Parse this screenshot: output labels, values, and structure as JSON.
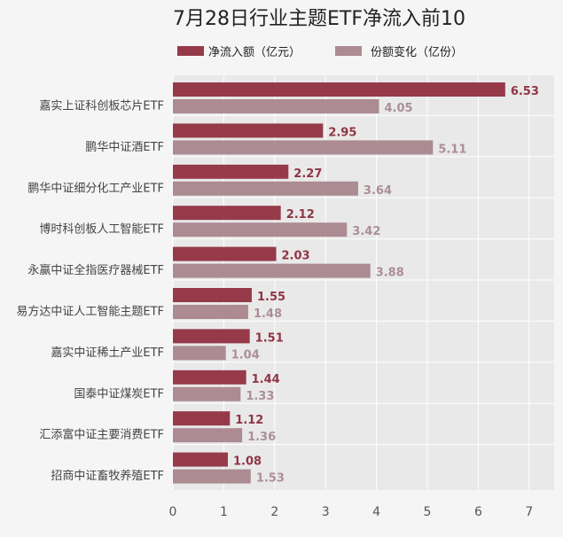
{
  "chart_data": {
    "type": "bar",
    "orientation": "horizontal",
    "title": "7月28日行业主题ETF净流入前10",
    "categories": [
      "嘉实上证科创板芯片ETF",
      "鹏华中证酒ETF",
      "鹏华中证细分化工产业ETF",
      "博时科创板人工智能ETF",
      "永赢中证全指医疗器械ETF",
      "易方达中证人工智能主题ETF",
      "嘉实中证稀土产业ETF",
      "国泰中证煤炭ETF",
      "汇添富中证主要消费ETF",
      "招商中证畜牧养殖ETF"
    ],
    "series": [
      {
        "name": "净流入额（亿元）",
        "color": "#963a4a",
        "label_color": "#8f3545",
        "values": [
          6.53,
          2.95,
          2.27,
          2.12,
          2.03,
          1.55,
          1.51,
          1.44,
          1.12,
          1.08
        ]
      },
      {
        "name": "份额变化（亿份）",
        "color": "#ac8b93",
        "label_color": "#ab8f96",
        "values": [
          4.05,
          5.11,
          3.64,
          3.42,
          3.88,
          1.48,
          1.04,
          1.33,
          1.36,
          1.53
        ]
      }
    ],
    "xlim": [
      0,
      7.5
    ],
    "xticks": [
      "0",
      "1",
      "2",
      "3",
      "4",
      "5",
      "6",
      "7"
    ],
    "grid": true,
    "legend_position": "top"
  }
}
